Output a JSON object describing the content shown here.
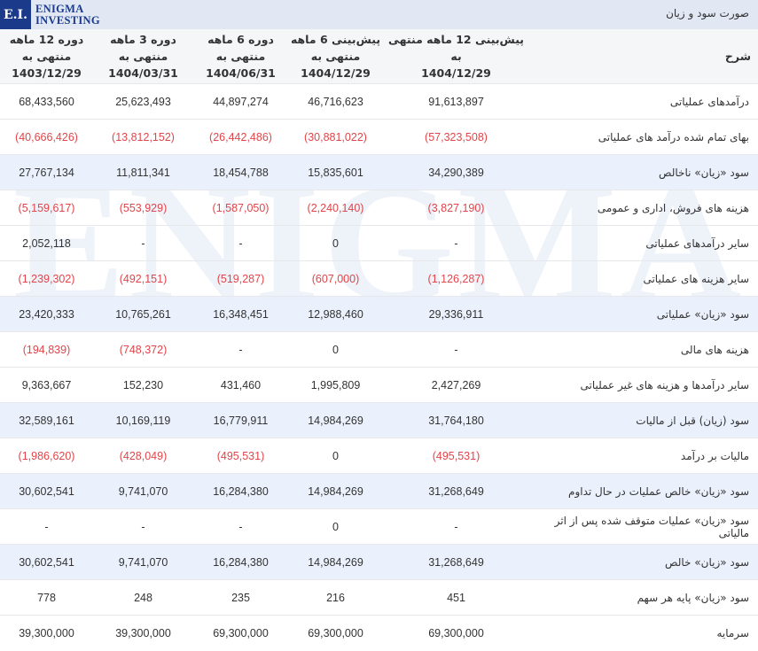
{
  "header": {
    "logo_mark": "E.I.",
    "logo_line1": "ENIGMA",
    "logo_line2": "INVESTING",
    "title": "صورت سود و زیان"
  },
  "watermark": "ENIGMA",
  "colors": {
    "brand": "#1b3a8a",
    "negative": "#e0454a",
    "highlight_row": "#e8effb",
    "header_bar": "#e1e8f4"
  },
  "table": {
    "columns": [
      {
        "label": "دوره 12 ماهه منتهی به",
        "date": "1403/12/29"
      },
      {
        "label": "دوره 3 ماهه منتهی به",
        "date": "1404/03/31"
      },
      {
        "label": "دوره 6 ماهه منتهی به",
        "date": "1404/06/31"
      },
      {
        "label": "پیش‌بینی 6 ماهه منتهی به",
        "date": "1404/12/29"
      },
      {
        "label": "پیش‌بینی 12 ماهه منتهی به",
        "date": "1404/12/29"
      },
      {
        "label": "شرح",
        "date": ""
      }
    ],
    "rows": [
      {
        "desc": "درآمدهای عملیاتی",
        "highlight": false,
        "values": [
          "68,433,560",
          "25,623,493",
          "44,897,274",
          "46,716,623",
          "91,613,897"
        ]
      },
      {
        "desc": "بهای تمام شده درآمد های عملیاتی",
        "highlight": false,
        "values": [
          "(40,666,426)",
          "(13,812,152)",
          "(26,442,486)",
          "(30,881,022)",
          "(57,323,508)"
        ]
      },
      {
        "desc": "سود «زیان» ناخالص",
        "highlight": true,
        "values": [
          "27,767,134",
          "11,811,341",
          "18,454,788",
          "15,835,601",
          "34,290,389"
        ]
      },
      {
        "desc": "هزینه های فروش، اداری و عمومی",
        "highlight": false,
        "values": [
          "(5,159,617)",
          "(553,929)",
          "(1,587,050)",
          "(2,240,140)",
          "(3,827,190)"
        ]
      },
      {
        "desc": "سایر درآمدهای عملیاتی",
        "highlight": false,
        "values": [
          "2,052,118",
          "-",
          "-",
          "0",
          "-"
        ]
      },
      {
        "desc": "سایر هزینه های عملیاتی",
        "highlight": false,
        "values": [
          "(1,239,302)",
          "(492,151)",
          "(519,287)",
          "(607,000)",
          "(1,126,287)"
        ]
      },
      {
        "desc": "سود «زیان» عملیاتی",
        "highlight": true,
        "values": [
          "23,420,333",
          "10,765,261",
          "16,348,451",
          "12,988,460",
          "29,336,911"
        ]
      },
      {
        "desc": "هزینه های مالی",
        "highlight": false,
        "values": [
          "(194,839)",
          "(748,372)",
          "-",
          "0",
          "-"
        ]
      },
      {
        "desc": "سایر درآمدها و هزینه های غیر عملیاتی",
        "highlight": false,
        "values": [
          "9,363,667",
          "152,230",
          "431,460",
          "1,995,809",
          "2,427,269"
        ]
      },
      {
        "desc": "سود (زیان) قبل از مالیات",
        "highlight": true,
        "values": [
          "32,589,161",
          "10,169,119",
          "16,779,911",
          "14,984,269",
          "31,764,180"
        ]
      },
      {
        "desc": "مالیات بر درآمد",
        "highlight": false,
        "values": [
          "(1,986,620)",
          "(428,049)",
          "(495,531)",
          "0",
          "(495,531)"
        ]
      },
      {
        "desc": "سود «زیان» خالص عملیات در حال تداوم",
        "highlight": true,
        "values": [
          "30,602,541",
          "9,741,070",
          "16,284,380",
          "14,984,269",
          "31,268,649"
        ]
      },
      {
        "desc": "سود «زیان» عملیات متوقف شده پس از اثر مالیاتی",
        "highlight": false,
        "values": [
          "-",
          "-",
          "-",
          "0",
          "-"
        ]
      },
      {
        "desc": "سود «زیان» خالص",
        "highlight": true,
        "values": [
          "30,602,541",
          "9,741,070",
          "16,284,380",
          "14,984,269",
          "31,268,649"
        ]
      },
      {
        "desc": "سود «زیان» پایه هر سهم",
        "highlight": false,
        "values": [
          "778",
          "248",
          "235",
          "216",
          "451"
        ]
      },
      {
        "desc": "سرمایه",
        "highlight": false,
        "values": [
          "39,300,000",
          "39,300,000",
          "69,300,000",
          "69,300,000",
          "69,300,000"
        ]
      }
    ]
  }
}
